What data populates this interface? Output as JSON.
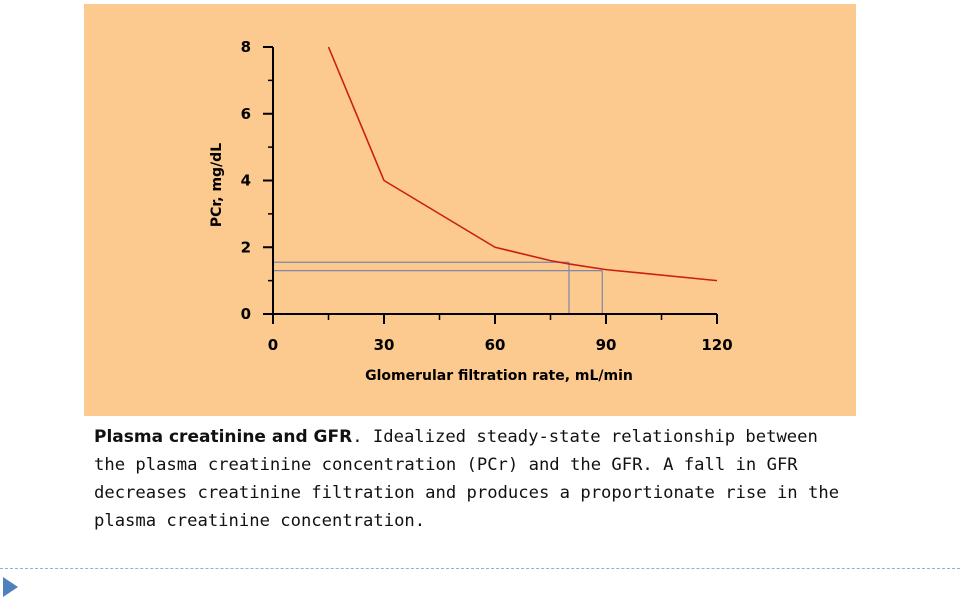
{
  "colors": {
    "panel_background": "#fcc98f",
    "curve": "#cc1f10",
    "guide_lines": "#7f86a8",
    "axis": "#000000",
    "nav_arrow": "#4f81bd",
    "divider": "#8fb3c8"
  },
  "chart_data": {
    "type": "line",
    "xlabel": "Glomerular filtration rate, mL/min",
    "ylabel": "PCr, mg/dL",
    "xlim": [
      0,
      120
    ],
    "ylim": [
      0,
      8
    ],
    "x_ticks": [
      0,
      30,
      60,
      90,
      120
    ],
    "y_ticks": [
      0,
      2,
      4,
      6,
      8
    ],
    "grid": false,
    "legend": "none",
    "series": [
      {
        "x": [
          15,
          30,
          60,
          75,
          80,
          90,
          120
        ],
        "y": [
          8,
          4,
          2,
          1.6,
          1.5,
          1.33,
          1
        ]
      }
    ],
    "reference_lines": [
      {
        "x": 80,
        "y": 1.55
      },
      {
        "x": 89,
        "y": 1.3
      }
    ]
  },
  "caption": {
    "title": "Plasma creatinine and GFR",
    "text": ". Idealized steady-state relationship between the plasma creatinine concentration (PCr) and the GFR. A fall in GFR decreases creatinine filtration and produces a proportionate rise in the plasma creatinine concentration."
  },
  "footer": {
    "nav_icon": "play-arrow-icon"
  }
}
